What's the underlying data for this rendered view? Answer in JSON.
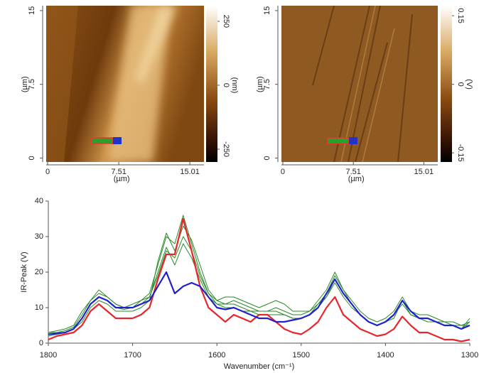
{
  "chart_data": [
    {
      "type": "image",
      "x_label": "(µm)",
      "y_label": "(µm)",
      "xlim": [
        -0.15,
        16.5
      ],
      "ylim": [
        -0.4,
        15.5
      ],
      "xticks": [
        0,
        7.51,
        15.01
      ],
      "yticks": [
        0,
        7.5,
        15
      ],
      "clim": [
        -300,
        311
      ],
      "colorbar_ticks": [
        -250,
        0,
        250
      ],
      "colorbar_label": "(nm)"
    },
    {
      "type": "image",
      "x_label": "(µm)",
      "y_label": "(µm)",
      "xlim": [
        -0.15,
        16.5
      ],
      "ylim": [
        -0.4,
        15.5
      ],
      "xticks": [
        0,
        7.51,
        15.01
      ],
      "yticks": [
        0,
        7.5,
        15
      ],
      "clim": [
        -0.17,
        0.172
      ],
      "colorbar_ticks": [
        -0.15,
        0,
        0.15
      ],
      "colorbar_label": "(V)"
    },
    {
      "type": "line",
      "x_label": "Wavenumber (cm⁻¹)",
      "y_label": "IR-Peak (V)",
      "xlim": [
        1800,
        1300
      ],
      "ylim": [
        0,
        40
      ],
      "xticks": [
        1800,
        1700,
        1600,
        1500,
        1400,
        1300
      ],
      "yticks": [
        0,
        10,
        20,
        30,
        40
      ],
      "x": [
        1800,
        1790,
        1780,
        1770,
        1760,
        1750,
        1740,
        1730,
        1720,
        1710,
        1700,
        1690,
        1680,
        1670,
        1660,
        1650,
        1640,
        1630,
        1620,
        1610,
        1600,
        1590,
        1580,
        1570,
        1560,
        1550,
        1540,
        1530,
        1520,
        1510,
        1500,
        1490,
        1480,
        1470,
        1460,
        1450,
        1440,
        1430,
        1420,
        1410,
        1400,
        1390,
        1380,
        1370,
        1360,
        1350,
        1340,
        1330,
        1320,
        1310,
        1300
      ],
      "series": [
        {
          "color": "#2a8a2a",
          "values": [
            3,
            3,
            3.5,
            4.5,
            8,
            12,
            14,
            13,
            11,
            10,
            11,
            12,
            14,
            22,
            30,
            28,
            36,
            28,
            20,
            14,
            11,
            11,
            12,
            11,
            10,
            9,
            9,
            10,
            9,
            8,
            8,
            9,
            11,
            14,
            19,
            15,
            12,
            9,
            7,
            6,
            7,
            9,
            13,
            9,
            8,
            8,
            7,
            6,
            6,
            5,
            6
          ]
        },
        {
          "color": "#2a8a2a",
          "values": [
            2.5,
            3,
            3,
            4,
            7,
            11,
            13,
            12,
            10,
            9.5,
            10,
            12,
            13,
            19,
            26,
            24,
            30,
            26,
            19,
            14,
            12,
            13,
            13,
            12,
            11,
            10,
            11,
            12,
            11,
            9,
            9,
            9,
            12,
            15,
            20,
            15,
            11,
            8,
            6,
            5,
            6,
            8,
            12,
            8,
            7,
            7,
            6,
            5,
            5,
            4,
            6
          ]
        },
        {
          "color": "#2a8a2a",
          "values": [
            3,
            3.5,
            4,
            5,
            9,
            12,
            15,
            13,
            11,
            10,
            10,
            11,
            13,
            20,
            27,
            22,
            28,
            24,
            18,
            13,
            11,
            10,
            10,
            9,
            9,
            8,
            8,
            8,
            8,
            7,
            7,
            8,
            10,
            13,
            17,
            13,
            10,
            8,
            6,
            5,
            6,
            8,
            11,
            8,
            7,
            7,
            6,
            6,
            5,
            5,
            5
          ]
        },
        {
          "color": "#2a8a2a",
          "values": [
            2,
            2.5,
            3,
            4,
            6,
            10,
            12,
            11,
            9,
            9,
            9,
            10,
            12,
            23,
            31,
            26,
            33,
            29,
            22,
            15,
            12,
            11,
            11,
            10,
            9,
            9,
            9,
            9,
            8,
            7,
            7,
            8,
            11,
            13,
            18,
            14,
            11,
            8,
            6,
            5,
            6,
            7,
            12,
            8,
            7,
            6,
            6,
            5,
            5,
            4,
            7
          ]
        },
        {
          "color": "#e8262a",
          "values": [
            1,
            2,
            2.5,
            3,
            5,
            9,
            11,
            9,
            7,
            7,
            7,
            8,
            10,
            18,
            25,
            25,
            35,
            26,
            16,
            10,
            8,
            6,
            8,
            7,
            6,
            8,
            8,
            6,
            4,
            3,
            2.5,
            4,
            6,
            10,
            13,
            8,
            6,
            4,
            3,
            2,
            2.5,
            4,
            7.5,
            5,
            3,
            3,
            2,
            1,
            1,
            0.5,
            1
          ]
        },
        {
          "color": "#1f1fcf",
          "values": [
            2.5,
            2.7,
            3,
            4,
            7,
            11,
            13,
            12,
            10,
            10,
            10,
            11,
            12,
            16,
            20,
            14,
            16,
            17,
            16,
            13,
            10,
            9.5,
            10,
            9,
            8,
            7,
            7,
            6,
            6,
            6.5,
            7,
            8,
            10,
            14,
            18,
            14,
            11,
            8,
            6,
            5,
            6,
            8,
            12,
            9,
            7,
            7,
            6,
            5,
            5,
            4,
            5
          ]
        }
      ]
    }
  ]
}
